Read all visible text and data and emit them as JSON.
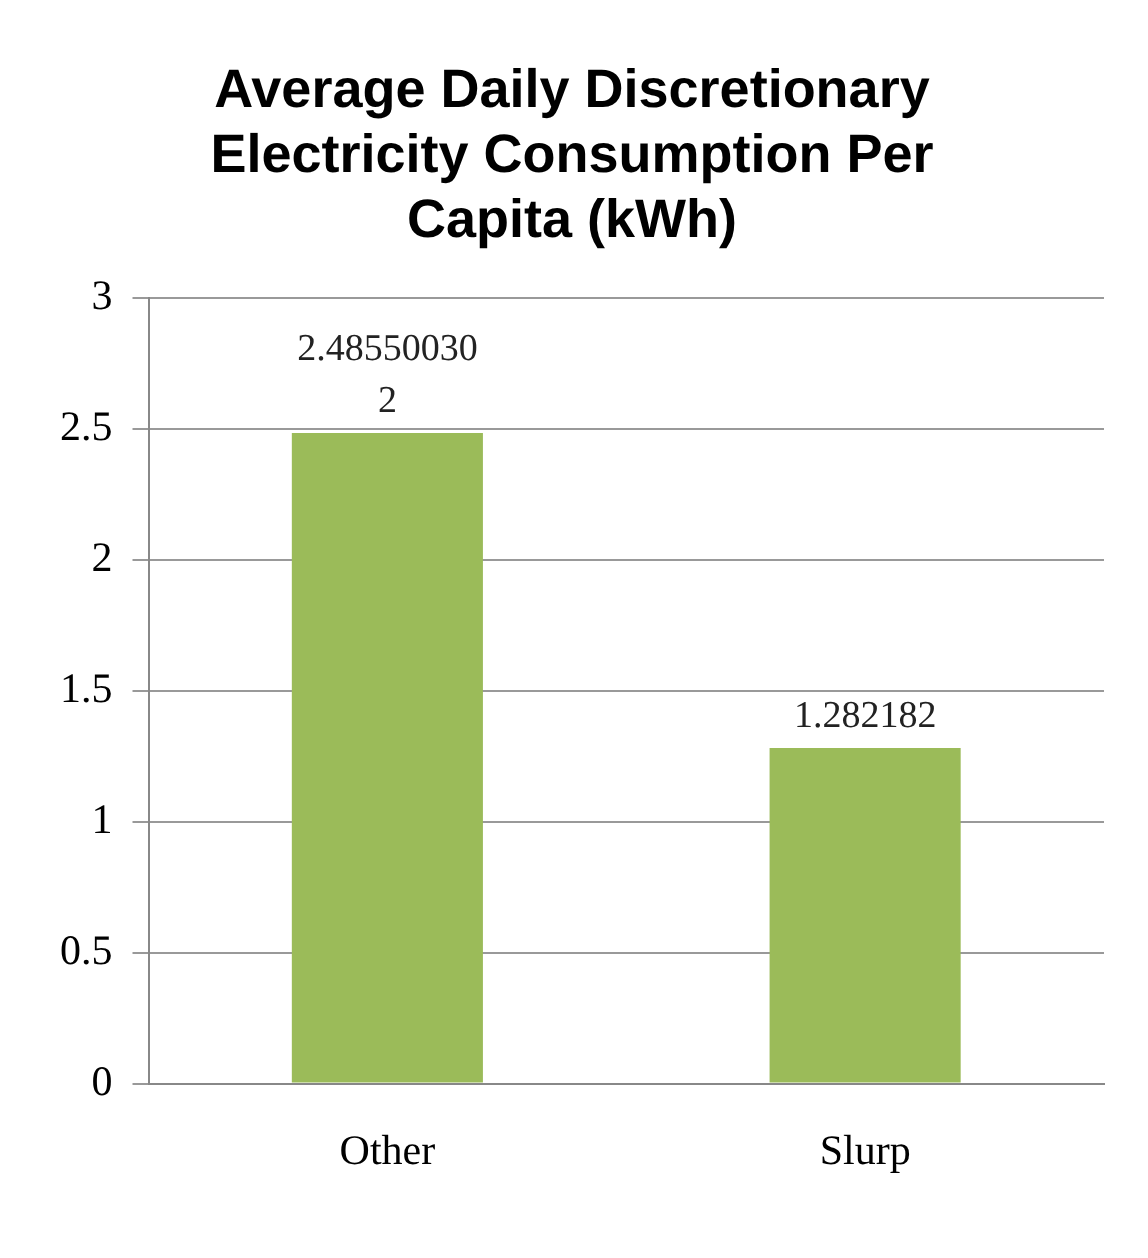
{
  "chart_data": {
    "type": "bar",
    "title": "Average Daily Discretionary Electricity Consumption Per Capita (kWh)",
    "categories": [
      "Other",
      "Slurp"
    ],
    "values": [
      2.485500302,
      1.282182
    ],
    "color": "#9bbb59",
    "ylim": [
      0,
      3
    ],
    "yticks": [
      0,
      0.5,
      1,
      1.5,
      2,
      2.5,
      3
    ],
    "grid": "y",
    "data_labels": true
  }
}
